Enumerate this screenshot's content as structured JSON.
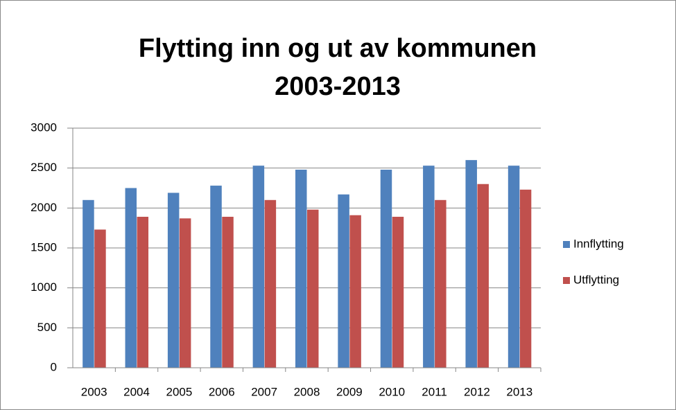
{
  "chart_data": {
    "type": "bar",
    "title": [
      "Flytting inn og ut av kommunen",
      "2003-2013"
    ],
    "categories": [
      "2003",
      "2004",
      "2005",
      "2006",
      "2007",
      "2008",
      "2009",
      "2010",
      "2011",
      "2012",
      "2013"
    ],
    "series": [
      {
        "name": "Innflytting",
        "color": "#4f81bd",
        "values": [
          2100,
          2250,
          2190,
          2280,
          2530,
          2480,
          2170,
          2480,
          2530,
          2600,
          2530
        ]
      },
      {
        "name": "Utflytting",
        "color": "#c0504d",
        "values": [
          1730,
          1890,
          1870,
          1890,
          2100,
          1980,
          1910,
          1890,
          2100,
          2300,
          2230
        ]
      }
    ],
    "ylim": [
      0,
      3000
    ],
    "yticks": [
      0,
      500,
      1000,
      1500,
      2000,
      2500,
      3000
    ],
    "grid": true,
    "legend": "right"
  }
}
